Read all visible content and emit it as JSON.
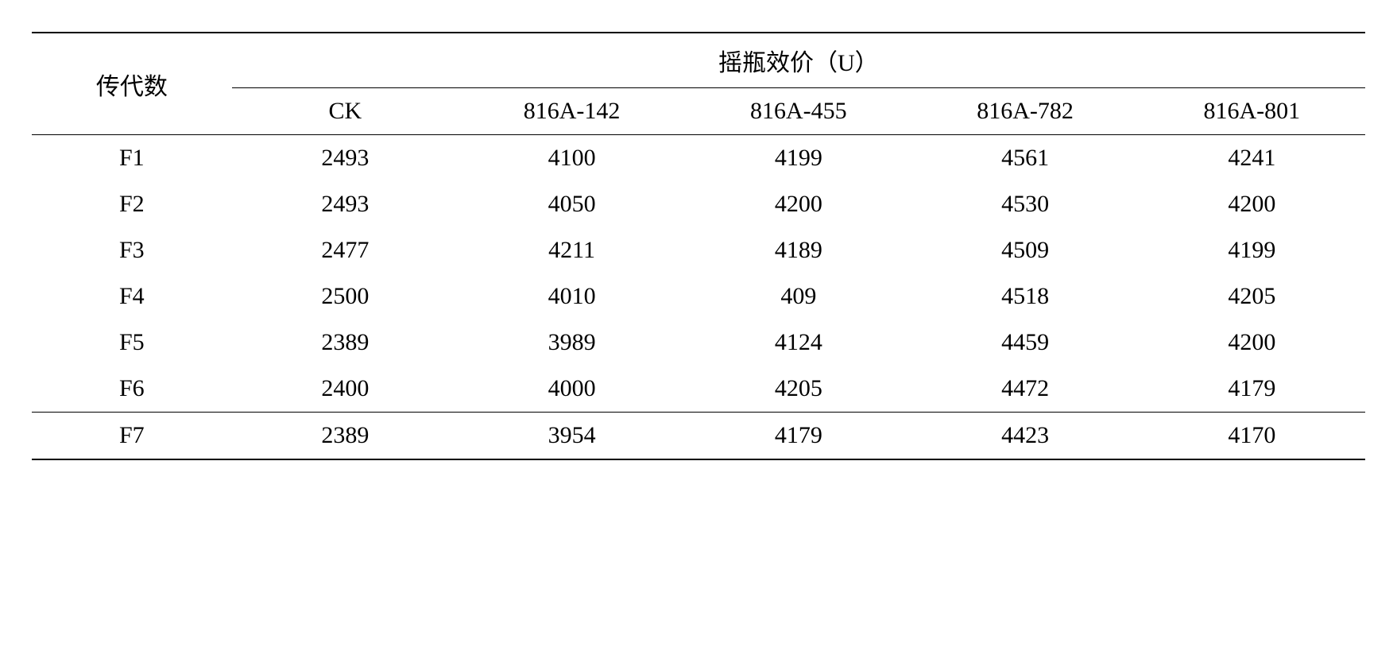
{
  "table": {
    "type": "table",
    "text_color": "#000000",
    "background_color": "#ffffff",
    "border_color": "#000000",
    "fontsize": 30,
    "rowhead_label": "传代数",
    "spanner_label": "摇瓶效价（U）",
    "columns": [
      "CK",
      "816A-142",
      "816A-455",
      "816A-782",
      "816A-801"
    ],
    "row_labels": [
      "F1",
      "F2",
      "F3",
      "F4",
      "F5",
      "F6",
      "F7"
    ],
    "rows": [
      [
        "2493",
        "4100",
        "4199",
        "4561",
        "4241"
      ],
      [
        "2493",
        "4050",
        "4200",
        "4530",
        "4200"
      ],
      [
        "2477",
        "4211",
        "4189",
        "4509",
        "4199"
      ],
      [
        "2500",
        "4010",
        "409",
        "4518",
        "4205"
      ],
      [
        "2389",
        "3989",
        "4124",
        "4459",
        "4200"
      ],
      [
        "2400",
        "4000",
        "4205",
        "4472",
        "4179"
      ],
      [
        "2389",
        "3954",
        "4179",
        "4423",
        "4170"
      ]
    ]
  }
}
